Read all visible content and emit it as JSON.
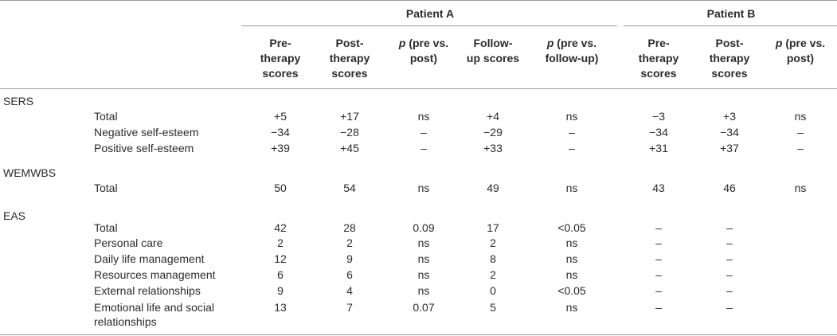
{
  "table": {
    "groups": [
      {
        "label": "Patient A"
      },
      {
        "label": "Patient B"
      }
    ],
    "columns": [
      {
        "line1": "Pre-",
        "line2": "therapy",
        "line3": "scores"
      },
      {
        "line1": "Post-",
        "line2": "therapy",
        "line3": "scores"
      },
      {
        "p": "p",
        "line1": " (pre vs.",
        "line2": "post)"
      },
      {
        "line1": "Follow-",
        "line2": "up scores"
      },
      {
        "p": "p",
        "line1": " (pre vs.",
        "line2": "follow-up)"
      },
      {
        "line1": "Pre-",
        "line2": "therapy",
        "line3": "scores"
      },
      {
        "line1": "Post-",
        "line2": "therapy",
        "line3": "scores"
      },
      {
        "p": "p",
        "line1": " (pre vs.",
        "line2": "post)"
      }
    ],
    "sections": [
      {
        "name": "SERS",
        "rows": [
          {
            "label": "Total",
            "values": [
              "+5",
              "+17",
              "ns",
              "+4",
              "ns",
              "−3",
              "+3",
              "ns"
            ]
          },
          {
            "label": "Negative self-esteem",
            "values": [
              "−34",
              "−28",
              "–",
              "−29",
              "–",
              "−34",
              "−34",
              "–"
            ]
          },
          {
            "label": "Positive self-esteem",
            "values": [
              "+39",
              "+45",
              "–",
              "+33",
              "–",
              "+31",
              "+37",
              "–"
            ]
          }
        ]
      },
      {
        "name": "WEMWBS",
        "rows": [
          {
            "label": "Total",
            "values": [
              "50",
              "54",
              "ns",
              "49",
              "ns",
              "43",
              "46",
              "ns"
            ]
          }
        ]
      },
      {
        "name": "EAS",
        "rows": [
          {
            "label": "Total",
            "values": [
              "42",
              "28",
              "0.09",
              "17",
              "<0.05",
              "–",
              "–",
              ""
            ]
          },
          {
            "label": "Personal care",
            "values": [
              "2",
              "2",
              "ns",
              "2",
              "ns",
              "–",
              "–",
              ""
            ]
          },
          {
            "label": "Daily life management",
            "values": [
              "12",
              "9",
              "ns",
              "8",
              "ns",
              "–",
              "–",
              ""
            ]
          },
          {
            "label": "Resources management",
            "values": [
              "6",
              "6",
              "ns",
              "2",
              "ns",
              "–",
              "–",
              ""
            ]
          },
          {
            "label": "External relationships",
            "values": [
              "9",
              "4",
              "ns",
              "0",
              "<0.05",
              "–",
              "–",
              ""
            ]
          },
          {
            "label": "Emotional life and social",
            "label2": "relationships",
            "values": [
              "13",
              "7",
              "0.07",
              "5",
              "ns",
              "–",
              "–",
              ""
            ]
          }
        ]
      }
    ]
  }
}
